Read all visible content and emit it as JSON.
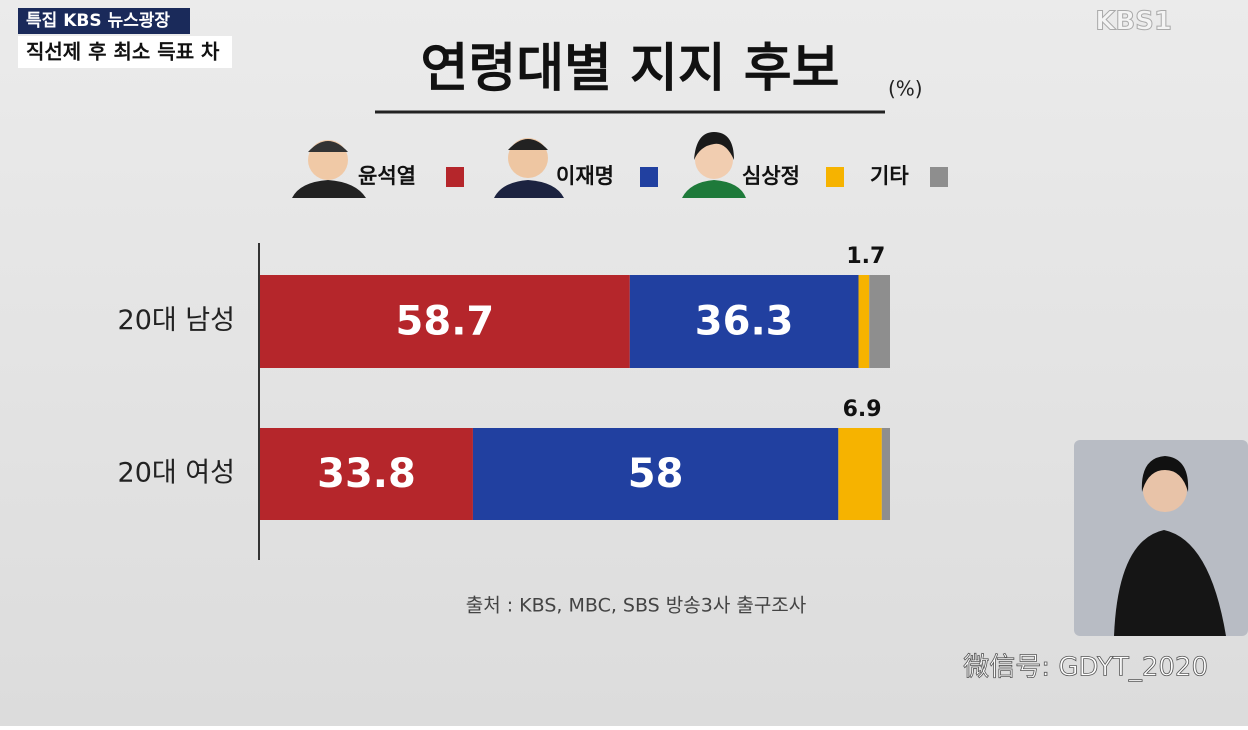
{
  "broadcast": {
    "badge": "특집 KBS 뉴스광장",
    "headline": "직선제 후 최소 득표 차",
    "logo": "KBS1"
  },
  "watermark": "微信号: GDYT_2020",
  "chart_data": {
    "type": "stacked_bar",
    "orientation": "horizontal",
    "title": "연령대별 지지 후보",
    "unit": "(%)",
    "categories": [
      "20대 남성",
      "20대 여성"
    ],
    "series": [
      {
        "name": "윤석열",
        "color": "#b5262b",
        "values": [
          58.7,
          33.8
        ],
        "label_position": "inside"
      },
      {
        "name": "이재명",
        "color": "#2140a0",
        "values": [
          36.3,
          58
        ],
        "label_position": "inside"
      },
      {
        "name": "심상정",
        "color": "#f6b300",
        "values": [
          1.7,
          6.9
        ],
        "label_position": "above"
      },
      {
        "name": "기타",
        "color": "#8e8e8e",
        "values": [
          3.3,
          1.3
        ],
        "show_labels": false
      }
    ],
    "xlim": [
      0,
      100
    ],
    "source": "출처 : KBS, MBC, SBS 방송3사 출구조사"
  }
}
